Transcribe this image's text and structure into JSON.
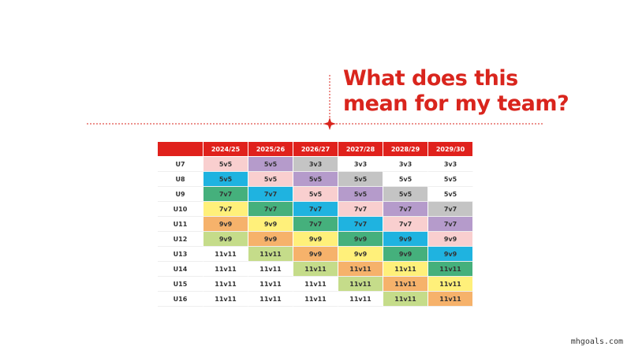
{
  "header": {
    "title_lines": [
      "What does this",
      "mean for my team?"
    ]
  },
  "table": {
    "columns": [
      "2024/25",
      "2025/26",
      "2026/27",
      "2027/28",
      "2028/29",
      "2029/30"
    ],
    "rows": [
      {
        "label": "U7",
        "cells": [
          "5v5",
          "5v5",
          "3v3",
          "3v3",
          "3v3",
          "3v3"
        ],
        "colors": [
          "#f9cfcf",
          "#b59bcb",
          "#c4c4c4",
          "#ffffff",
          "#ffffff",
          "#ffffff"
        ]
      },
      {
        "label": "U8",
        "cells": [
          "5v5",
          "5v5",
          "5v5",
          "5v5",
          "5v5",
          "5v5"
        ],
        "colors": [
          "#1fb3e0",
          "#f9cfcf",
          "#b59bcb",
          "#c4c4c4",
          "#ffffff",
          "#ffffff"
        ]
      },
      {
        "label": "U9",
        "cells": [
          "7v7",
          "7v7",
          "5v5",
          "5v5",
          "5v5",
          "5v5"
        ],
        "colors": [
          "#45b07c",
          "#1fb3e0",
          "#f9cfcf",
          "#b59bcb",
          "#c4c4c4",
          "#ffffff"
        ]
      },
      {
        "label": "U10",
        "cells": [
          "7v7",
          "7v7",
          "7v7",
          "7v7",
          "7v7",
          "7v7"
        ],
        "colors": [
          "#fff07a",
          "#45b07c",
          "#1fb3e0",
          "#f9cfcf",
          "#b59bcb",
          "#c4c4c4"
        ]
      },
      {
        "label": "U11",
        "cells": [
          "9v9",
          "9v9",
          "7v7",
          "7v7",
          "7v7",
          "7v7"
        ],
        "colors": [
          "#f6b26b",
          "#fff07a",
          "#45b07c",
          "#1fb3e0",
          "#f9cfcf",
          "#b59bcb"
        ]
      },
      {
        "label": "U12",
        "cells": [
          "9v9",
          "9v9",
          "9v9",
          "9v9",
          "9v9",
          "9v9"
        ],
        "colors": [
          "#c5dc8a",
          "#f6b26b",
          "#fff07a",
          "#45b07c",
          "#1fb3e0",
          "#f9cfcf"
        ]
      },
      {
        "label": "U13",
        "cells": [
          "11v11",
          "11v11",
          "9v9",
          "9v9",
          "9v9",
          "9v9"
        ],
        "colors": [
          "#ffffff",
          "#c5dc8a",
          "#f6b26b",
          "#fff07a",
          "#45b07c",
          "#1fb3e0"
        ]
      },
      {
        "label": "U14",
        "cells": [
          "11v11",
          "11v11",
          "11v11",
          "11v11",
          "11v11",
          "11v11"
        ],
        "colors": [
          "#ffffff",
          "#ffffff",
          "#c5dc8a",
          "#f6b26b",
          "#fff07a",
          "#45b07c"
        ]
      },
      {
        "label": "U15",
        "cells": [
          "11v11",
          "11v11",
          "11v11",
          "11v11",
          "11v11",
          "11v11"
        ],
        "colors": [
          "#ffffff",
          "#ffffff",
          "#ffffff",
          "#c5dc8a",
          "#f6b26b",
          "#fff07a"
        ]
      },
      {
        "label": "U16",
        "cells": [
          "11v11",
          "11v11",
          "11v11",
          "11v11",
          "11v11",
          "11v11"
        ],
        "colors": [
          "#ffffff",
          "#ffffff",
          "#ffffff",
          "#ffffff",
          "#c5dc8a",
          "#f6b26b"
        ]
      }
    ]
  },
  "footer": {
    "watermark": "mhgoals.com"
  }
}
